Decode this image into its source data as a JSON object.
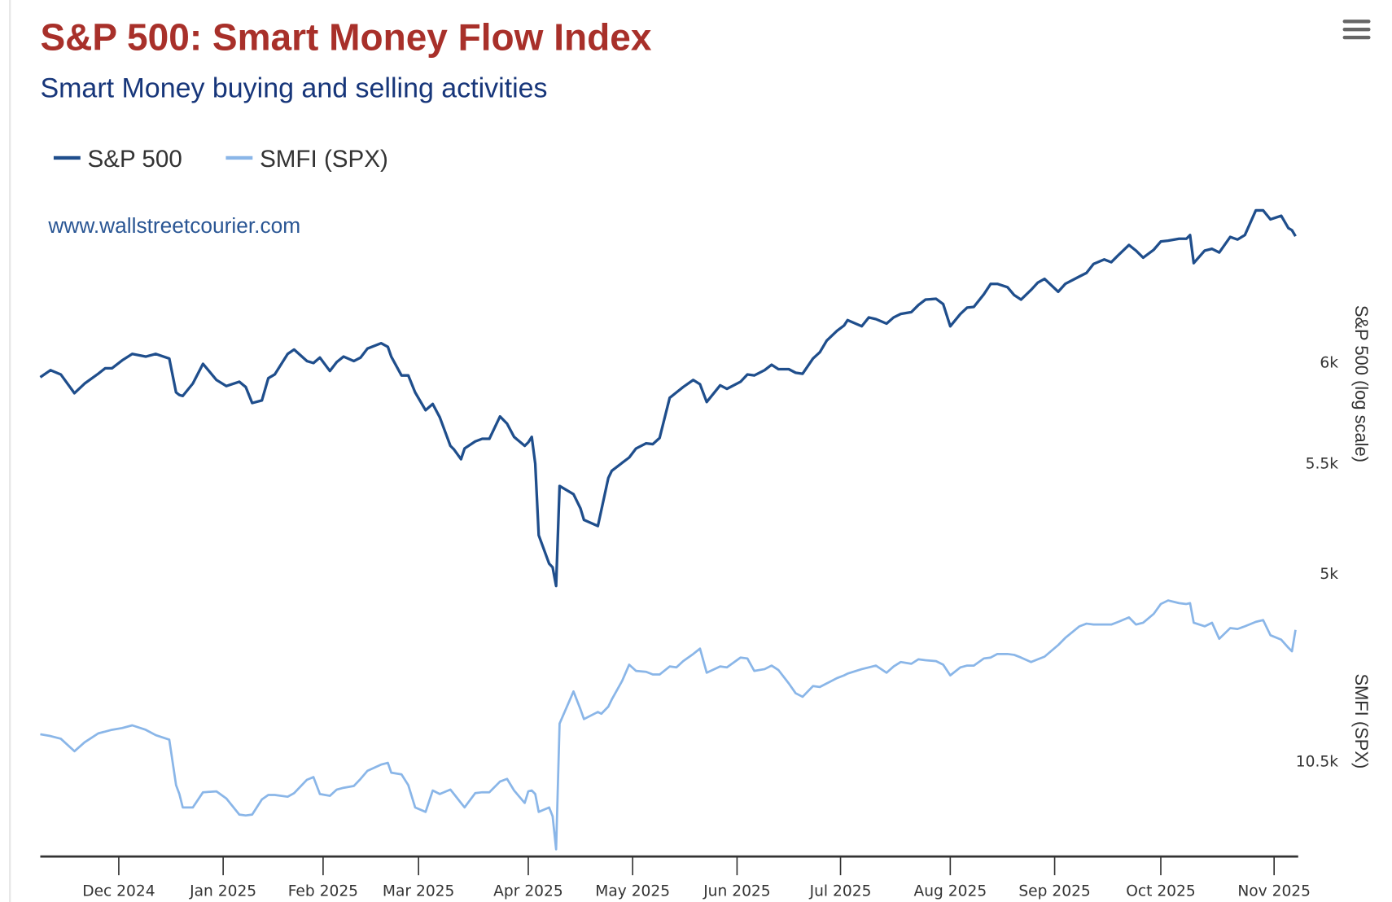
{
  "menu": {
    "icon": "hamburger-menu-icon"
  },
  "chart_data": {
    "type": "line",
    "title": "S&P 500: Smart Money Flow Index",
    "subtitle": "Smart Money buying and selling activities",
    "credit": "www.wallstreetcourier.com",
    "legend": {
      "placement": "top-left",
      "entries": [
        {
          "name": "S&P 500",
          "color": "#1f4e8c"
        },
        {
          "name": "SMFI (SPX)",
          "color": "#8ab6e8"
        }
      ]
    },
    "x_tick_labels": [
      "Dec 2024",
      "Jan 2025",
      "Feb 2025",
      "Mar 2025",
      "Apr 2025",
      "May 2025",
      "Jun 2025",
      "Jul 2025",
      "Aug 2025",
      "Sep 2025",
      "Oct 2025",
      "Nov 2025"
    ],
    "y_axes": [
      {
        "title": "S&P 500 (log scale)",
        "scale": "log",
        "ticks": [
          {
            "value": 6000,
            "label": "6k"
          },
          {
            "value": 5500,
            "label": "5.5k"
          },
          {
            "value": 5000,
            "label": "5k"
          }
        ],
        "range": [
          3918,
          6895
        ]
      },
      {
        "title": "SMFI (SPX)",
        "scale": "linear",
        "ticks": [
          {
            "value": 10500,
            "label": "10.5k"
          }
        ],
        "range": [
          10286,
          10900
        ]
      }
    ],
    "x": [
      "2024-11-08",
      "2024-11-11",
      "2024-11-14",
      "2024-11-18",
      "2024-11-21",
      "2024-11-25",
      "2024-11-27",
      "2024-11-29",
      "2024-12-02",
      "2024-12-05",
      "2024-12-09",
      "2024-12-12",
      "2024-12-16",
      "2024-12-18",
      "2024-12-19",
      "2024-12-20",
      "2024-12-23",
      "2024-12-26",
      "2024-12-30",
      "2025-01-02",
      "2025-01-06",
      "2025-01-08",
      "2025-01-10",
      "2025-01-13",
      "2025-01-15",
      "2025-01-17",
      "2025-01-21",
      "2025-01-23",
      "2025-01-27",
      "2025-01-29",
      "2025-01-31",
      "2025-02-03",
      "2025-02-05",
      "2025-02-07",
      "2025-02-10",
      "2025-02-12",
      "2025-02-14",
      "2025-02-18",
      "2025-02-20",
      "2025-02-21",
      "2025-02-24",
      "2025-02-26",
      "2025-02-28",
      "2025-03-03",
      "2025-03-05",
      "2025-03-07",
      "2025-03-10",
      "2025-03-11",
      "2025-03-13",
      "2025-03-14",
      "2025-03-17",
      "2025-03-19",
      "2025-03-21",
      "2025-03-24",
      "2025-03-26",
      "2025-03-28",
      "2025-03-31",
      "2025-04-01",
      "2025-04-02",
      "2025-04-03",
      "2025-04-04",
      "2025-04-07",
      "2025-04-08",
      "2025-04-09",
      "2025-04-10",
      "2025-04-14",
      "2025-04-16",
      "2025-04-17",
      "2025-04-21",
      "2025-04-22",
      "2025-04-24",
      "2025-04-25",
      "2025-04-28",
      "2025-04-30",
      "2025-05-02",
      "2025-05-05",
      "2025-05-07",
      "2025-05-09",
      "2025-05-12",
      "2025-05-14",
      "2025-05-16",
      "2025-05-19",
      "2025-05-21",
      "2025-05-23",
      "2025-05-27",
      "2025-05-29",
      "2025-06-02",
      "2025-06-04",
      "2025-06-06",
      "2025-06-09",
      "2025-06-11",
      "2025-06-13",
      "2025-06-16",
      "2025-06-18",
      "2025-06-20",
      "2025-06-23",
      "2025-06-25",
      "2025-06-27",
      "2025-06-30",
      "2025-07-02",
      "2025-07-03",
      "2025-07-07",
      "2025-07-09",
      "2025-07-11",
      "2025-07-14",
      "2025-07-16",
      "2025-07-18",
      "2025-07-21",
      "2025-07-23",
      "2025-07-25",
      "2025-07-28",
      "2025-07-30",
      "2025-08-01",
      "2025-08-04",
      "2025-08-06",
      "2025-08-08",
      "2025-08-11",
      "2025-08-13",
      "2025-08-15",
      "2025-08-18",
      "2025-08-20",
      "2025-08-22",
      "2025-08-25",
      "2025-08-27",
      "2025-08-29",
      "2025-09-02",
      "2025-09-04",
      "2025-09-08",
      "2025-09-10",
      "2025-09-12",
      "2025-09-15",
      "2025-09-17",
      "2025-09-19",
      "2025-09-22",
      "2025-09-24",
      "2025-09-26",
      "2025-09-29",
      "2025-10-01",
      "2025-10-03",
      "2025-10-06",
      "2025-10-08",
      "2025-10-09",
      "2025-10-10",
      "2025-10-13",
      "2025-10-15",
      "2025-10-17",
      "2025-10-20",
      "2025-10-22",
      "2025-10-24",
      "2025-10-27",
      "2025-10-29",
      "2025-10-31",
      "2025-11-03",
      "2025-11-05",
      "2025-11-06",
      "2025-11-07"
    ],
    "series": [
      {
        "name": "S&P 500",
        "axis": 0,
        "values": [
          5922,
          5958,
          5936,
          5841,
          5890,
          5940,
          5968,
          5968,
          6009,
          6042,
          6028,
          6042,
          6018,
          5845,
          5832,
          5827,
          5890,
          5991,
          5908,
          5877,
          5899,
          5872,
          5792,
          5805,
          5917,
          5936,
          6042,
          6065,
          6005,
          5995,
          6023,
          5954,
          6000,
          6028,
          6005,
          6023,
          6070,
          6098,
          6079,
          6028,
          5931,
          5931,
          5845,
          5756,
          5787,
          5721,
          5582,
          5565,
          5518,
          5569,
          5603,
          5616,
          5616,
          5725,
          5690,
          5625,
          5582,
          5599,
          5625,
          5497,
          5168,
          5043,
          5027,
          4947,
          5392,
          5354,
          5289,
          5237,
          5209,
          5281,
          5429,
          5463,
          5501,
          5526,
          5569,
          5594,
          5590,
          5620,
          5818,
          5845,
          5872,
          5908,
          5886,
          5797,
          5881,
          5863,
          5899,
          5936,
          5931,
          5958,
          5986,
          5963,
          5963,
          5945,
          5940,
          6018,
          6051,
          6112,
          6164,
          6192,
          6221,
          6188,
          6235,
          6226,
          6202,
          6235,
          6254,
          6264,
          6302,
          6332,
          6336,
          6307,
          6188,
          6254,
          6288,
          6292,
          6361,
          6418,
          6418,
          6400,
          6356,
          6332,
          6385,
          6425,
          6446,
          6375,
          6418,
          6459,
          6479,
          6529,
          6555,
          6539,
          6579,
          6637,
          6605,
          6565,
          6610,
          6657,
          6662,
          6673,
          6673,
          6694,
          6534,
          6605,
          6615,
          6594,
          6683,
          6668,
          6694,
          6838,
          6838,
          6785,
          6806,
          6734,
          6722,
          6687
        ]
      },
      {
        "name": "SMFI (SPX)",
        "axis": 1,
        "values": [
          10560,
          10556,
          10550,
          10522,
          10542,
          10562,
          10566,
          10570,
          10574,
          10580,
          10570,
          10558,
          10548,
          10446,
          10426,
          10396,
          10396,
          10430,
          10432,
          10416,
          10380,
          10378,
          10380,
          10414,
          10424,
          10424,
          10420,
          10428,
          10458,
          10464,
          10426,
          10422,
          10436,
          10440,
          10444,
          10460,
          10478,
          10492,
          10496,
          10474,
          10470,
          10446,
          10396,
          10386,
          10434,
          10426,
          10436,
          10426,
          10406,
          10396,
          10428,
          10430,
          10430,
          10454,
          10460,
          10434,
          10406,
          10432,
          10434,
          10426,
          10386,
          10396,
          10376,
          10302,
          10584,
          10656,
          10616,
          10594,
          10610,
          10606,
          10622,
          10638,
          10680,
          10716,
          10702,
          10700,
          10694,
          10694,
          10712,
          10710,
          10724,
          10740,
          10752,
          10698,
          10712,
          10710,
          10732,
          10730,
          10702,
          10706,
          10714,
          10704,
          10674,
          10652,
          10644,
          10668,
          10666,
          10674,
          10686,
          10692,
          10696,
          10706,
          10710,
          10714,
          10698,
          10712,
          10722,
          10718,
          10728,
          10726,
          10724,
          10716,
          10692,
          10710,
          10714,
          10714,
          10730,
          10732,
          10740,
          10740,
          10738,
          10732,
          10722,
          10728,
          10734,
          10760,
          10776,
          10802,
          10808,
          10806,
          10806,
          10806,
          10812,
          10822,
          10806,
          10810,
          10830,
          10852,
          10860,
          10854,
          10852,
          10854,
          10810,
          10802,
          10810,
          10774,
          10798,
          10796,
          10802,
          10812,
          10816,
          10782,
          10772,
          10754,
          10746,
          10794
        ]
      }
    ]
  }
}
